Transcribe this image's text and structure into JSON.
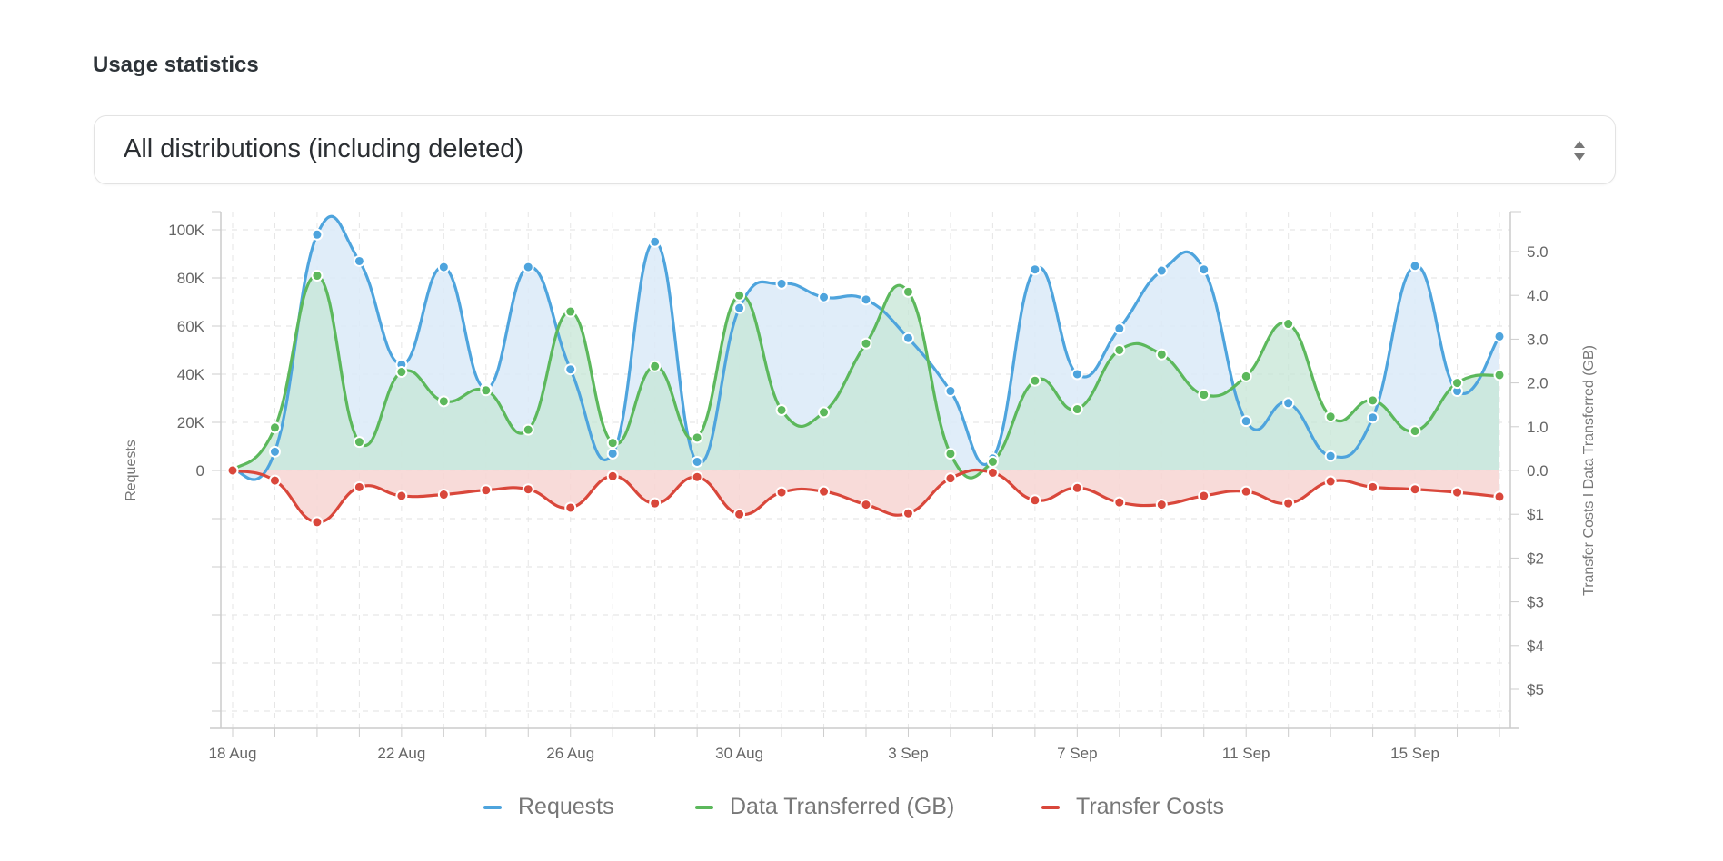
{
  "title": "Usage statistics",
  "distribution_select": {
    "value": "All distributions (including deleted)",
    "icon": "sort-arrows-icon"
  },
  "colors": {
    "requests": "#4ea4dd",
    "data": "#5cb85c",
    "costs": "#d9473b",
    "requests_fill": "#dbeaf8",
    "data_fill": "#c6e5d5",
    "costs_fill": "#f7d5d2"
  },
  "chart_data": {
    "type": "area",
    "grid": true,
    "legend_placement": "bottom",
    "x": [
      "18 Aug",
      "19 Aug",
      "20 Aug",
      "21 Aug",
      "22 Aug",
      "23 Aug",
      "24 Aug",
      "25 Aug",
      "26 Aug",
      "27 Aug",
      "28 Aug",
      "29 Aug",
      "30 Aug",
      "31 Aug",
      "1 Sep",
      "2 Sep",
      "3 Sep",
      "4 Sep",
      "5 Sep",
      "6 Sep",
      "7 Sep",
      "8 Sep",
      "9 Sep",
      "10 Sep",
      "11 Sep",
      "12 Sep",
      "13 Sep",
      "14 Sep",
      "15 Sep",
      "16 Sep",
      "17 Sep"
    ],
    "x_tick_labels": [
      "18 Aug",
      "22 Aug",
      "26 Aug",
      "30 Aug",
      "3 Sep",
      "7 Sep",
      "11 Sep",
      "15 Sep"
    ],
    "y_left": {
      "label": "Requests",
      "ticks": [
        "100K",
        "80K",
        "60K",
        "40K",
        "20K",
        "0"
      ],
      "range": [
        0,
        100000
      ]
    },
    "y_right": {
      "label": "Transfer Costs I Data Transferred (GB)",
      "ticks_up": [
        "5.0",
        "4.0",
        "3.0",
        "2.0",
        "1.0",
        "0.0"
      ],
      "ticks_down": [
        "$1",
        "$2",
        "$3",
        "$4",
        "$5"
      ],
      "range_gb": [
        0,
        5
      ],
      "range_cost": [
        0,
        5
      ]
    },
    "series": [
      {
        "name": "Requests",
        "axis": "left",
        "values": [
          0,
          7800,
          98000,
          87000,
          44000,
          84500,
          34000,
          84500,
          42000,
          7000,
          95000,
          3600,
          67500,
          77600,
          72000,
          71000,
          55000,
          33000,
          5000,
          83500,
          40000,
          59000,
          83000,
          83500,
          20500,
          28000,
          6000,
          22000,
          85000,
          33000,
          55700
        ]
      },
      {
        "name": "Data Transferred (GB)",
        "axis": "right",
        "values": [
          0,
          0.98,
          4.45,
          0.65,
          2.25,
          1.58,
          1.83,
          0.93,
          3.63,
          0.63,
          2.38,
          0.75,
          4.0,
          1.38,
          1.33,
          2.9,
          4.08,
          0.38,
          0.2,
          2.05,
          1.4,
          2.75,
          2.65,
          1.73,
          2.15,
          3.35,
          1.23,
          1.6,
          0.9,
          2.0,
          2.18
        ]
      },
      {
        "name": "Transfer Costs",
        "axis": "right-negative",
        "values": [
          0,
          0.23,
          1.18,
          0.38,
          0.58,
          0.55,
          0.45,
          0.43,
          0.85,
          0.13,
          0.75,
          0.15,
          1.0,
          0.5,
          0.48,
          0.78,
          0.98,
          0.18,
          0.05,
          0.68,
          0.4,
          0.73,
          0.78,
          0.58,
          0.48,
          0.75,
          0.25,
          0.38,
          0.43,
          0.5,
          0.6
        ]
      }
    ]
  }
}
